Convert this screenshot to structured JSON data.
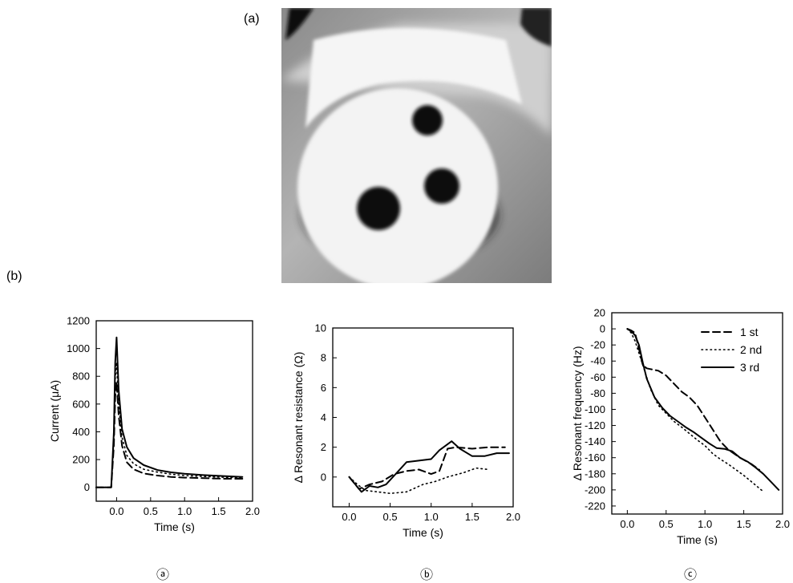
{
  "figure": {
    "panel_a_label": "(a)",
    "panel_b_label": "(b)",
    "subplot_markers": [
      "ⓐ",
      "ⓑ",
      "ⓒ"
    ]
  },
  "colors": {
    "ink": "#000000",
    "photo_bg": "#9a9a9a",
    "photo_disc": "#f2f2f2",
    "photo_dot": "#111111"
  },
  "chart_data": [
    {
      "type": "line",
      "xlabel": "Time (s)",
      "ylabel": "Current (μA)",
      "xlim": [
        -0.3,
        2.0
      ],
      "ylim": [
        -100,
        1200
      ],
      "xticks": [
        0.0,
        0.5,
        1.0,
        1.5,
        2.0
      ],
      "xtick_labels": [
        "0.0",
        "0.5",
        "1.0",
        "1.5",
        "2.0"
      ],
      "yticks": [
        0,
        200,
        400,
        600,
        800,
        1000,
        1200
      ],
      "ytick_labels": [
        "0",
        "200",
        "400",
        "600",
        "800",
        "1000",
        "1200"
      ],
      "grid": false,
      "series": [
        {
          "style": "solid",
          "x": [
            -0.3,
            -0.08,
            -0.04,
            -0.02,
            0.0,
            0.03,
            0.08,
            0.15,
            0.25,
            0.4,
            0.6,
            0.8,
            1.0,
            1.3,
            1.6,
            1.85
          ],
          "y": [
            0,
            0,
            400,
            900,
            1080,
            700,
            420,
            290,
            210,
            160,
            125,
            108,
            98,
            88,
            80,
            75
          ]
        },
        {
          "style": "dashed",
          "x": [
            -0.3,
            -0.08,
            -0.04,
            -0.02,
            0.0,
            0.03,
            0.08,
            0.15,
            0.25,
            0.4,
            0.6,
            0.8,
            1.0,
            1.3,
            1.6,
            1.85
          ],
          "y": [
            0,
            0,
            300,
            650,
            760,
            520,
            300,
            180,
            130,
            100,
            85,
            75,
            70,
            66,
            62,
            62
          ]
        },
        {
          "style": "dotted",
          "x": [
            -0.3,
            -0.08,
            -0.04,
            -0.02,
            0.0,
            0.03,
            0.08,
            0.15,
            0.25,
            0.4,
            0.6,
            0.8,
            1.0,
            1.3,
            1.6,
            1.85
          ],
          "y": [
            0,
            0,
            350,
            780,
            900,
            600,
            360,
            230,
            170,
            130,
            110,
            95,
            85,
            78,
            72,
            70
          ]
        }
      ]
    },
    {
      "type": "line",
      "xlabel": "Time (s)",
      "ylabel": "Δ Resonant resistance (Ω)",
      "xlim": [
        -0.2,
        2.0
      ],
      "ylim": [
        -2,
        10
      ],
      "xticks": [
        0.0,
        0.5,
        1.0,
        1.5,
        2.0
      ],
      "xtick_labels": [
        "0.0",
        "0.5",
        "1.0",
        "1.5",
        "2.0"
      ],
      "yticks": [
        0,
        2,
        4,
        6,
        8,
        10
      ],
      "ytick_labels": [
        "0",
        "2",
        "4",
        "6",
        "8",
        "10"
      ],
      "grid": false,
      "series": [
        {
          "style": "dashed",
          "x": [
            0.0,
            0.12,
            0.25,
            0.4,
            0.55,
            0.7,
            0.85,
            1.0,
            1.1,
            1.2,
            1.3,
            1.5,
            1.7,
            1.9
          ],
          "y": [
            0.0,
            -0.8,
            -0.5,
            -0.3,
            0.2,
            0.4,
            0.5,
            0.2,
            0.4,
            1.9,
            2.0,
            1.9,
            2.0,
            2.0
          ]
        },
        {
          "style": "dotted",
          "x": [
            0.0,
            0.1,
            0.2,
            0.35,
            0.5,
            0.7,
            0.9,
            1.05,
            1.2,
            1.4,
            1.55,
            1.7
          ],
          "y": [
            0.0,
            -0.5,
            -0.9,
            -1.0,
            -1.1,
            -1.0,
            -0.5,
            -0.3,
            0.0,
            0.3,
            0.6,
            0.5
          ]
        },
        {
          "style": "solid",
          "x": [
            0.0,
            0.15,
            0.25,
            0.35,
            0.45,
            0.55,
            0.7,
            0.85,
            1.0,
            1.1,
            1.25,
            1.35,
            1.5,
            1.65,
            1.8,
            1.95
          ],
          "y": [
            0.0,
            -1.0,
            -0.6,
            -0.7,
            -0.5,
            0.1,
            1.0,
            1.1,
            1.2,
            1.8,
            2.4,
            1.9,
            1.4,
            1.4,
            1.6,
            1.6
          ]
        }
      ]
    },
    {
      "type": "line",
      "xlabel": "Time (s)",
      "ylabel": "Δ Resonant frequency (Hz)",
      "xlim": [
        -0.2,
        2.0
      ],
      "ylim": [
        -230,
        20
      ],
      "xticks": [
        0.0,
        0.5,
        1.0,
        1.5,
        2.0
      ],
      "xtick_labels": [
        "0.0",
        "0.5",
        "1.0",
        "1.5",
        "2.0"
      ],
      "yticks": [
        20,
        0,
        -20,
        -40,
        -60,
        -80,
        -100,
        -120,
        -140,
        -160,
        -180,
        -200,
        -220
      ],
      "ytick_labels": [
        "20",
        "0",
        "-20",
        "-40",
        "-60",
        "-80",
        "-100",
        "-120",
        "-140",
        "-160",
        "-180",
        "-200",
        "-220"
      ],
      "grid": false,
      "legend_position": "top-right",
      "series": [
        {
          "name": "1 st",
          "style": "dashed",
          "x": [
            0.0,
            0.05,
            0.1,
            0.15,
            0.2,
            0.25,
            0.3,
            0.4,
            0.5,
            0.6,
            0.7,
            0.8,
            0.9,
            1.0,
            1.1,
            1.2,
            1.3,
            1.45,
            1.6,
            1.7
          ],
          "y": [
            0,
            -2,
            -5,
            -25,
            -45,
            -49,
            -50,
            -52,
            -58,
            -68,
            -78,
            -85,
            -95,
            -110,
            -125,
            -140,
            -150,
            -160,
            -168,
            -175
          ]
        },
        {
          "name": "2 nd",
          "style": "dotted",
          "x": [
            0.0,
            0.05,
            0.1,
            0.2,
            0.3,
            0.4,
            0.5,
            0.6,
            0.7,
            0.8,
            0.9,
            1.0,
            1.1,
            1.2,
            1.3,
            1.4,
            1.5,
            1.6,
            1.75
          ],
          "y": [
            0,
            -5,
            -15,
            -45,
            -75,
            -95,
            -105,
            -115,
            -122,
            -130,
            -138,
            -145,
            -155,
            -162,
            -168,
            -175,
            -182,
            -190,
            -202
          ]
        },
        {
          "name": "3 rd",
          "style": "solid",
          "x": [
            0.0,
            0.05,
            0.1,
            0.15,
            0.2,
            0.25,
            0.35,
            0.45,
            0.55,
            0.65,
            0.75,
            0.85,
            0.95,
            1.05,
            1.15,
            1.25,
            1.35,
            1.45,
            1.55,
            1.65,
            1.75,
            1.85,
            1.95
          ],
          "y": [
            0,
            -3,
            -8,
            -20,
            -42,
            -62,
            -85,
            -98,
            -108,
            -115,
            -122,
            -128,
            -135,
            -142,
            -148,
            -149,
            -152,
            -160,
            -165,
            -172,
            -180,
            -190,
            -200
          ]
        }
      ]
    }
  ]
}
